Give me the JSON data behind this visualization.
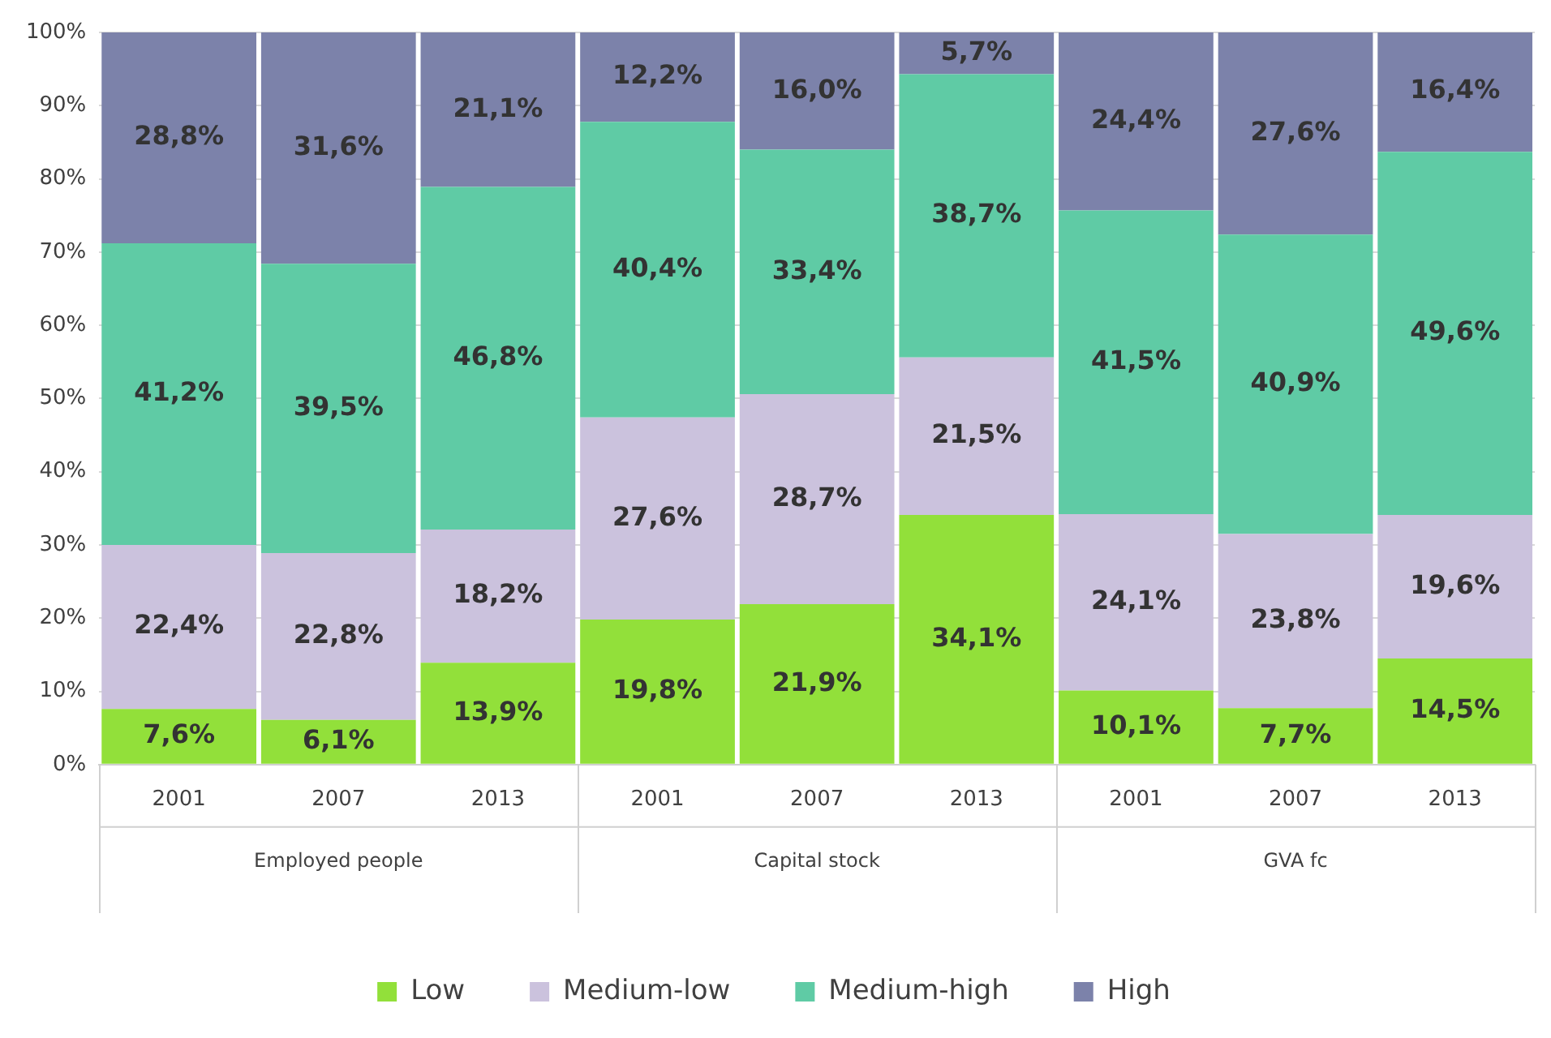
{
  "chart_data": {
    "type": "bar",
    "stacked": true,
    "categories": [
      "2001",
      "2007",
      "2013",
      "2001",
      "2007",
      "2013",
      "2001",
      "2007",
      "2013"
    ],
    "annotations": [
      "Employed people",
      "Capital stock",
      "GVA fc"
    ],
    "series": [
      {
        "name": "Low",
        "color": "#92e03a",
        "values": [
          7.6,
          6.1,
          13.9,
          19.8,
          21.9,
          34.1,
          10.1,
          7.7,
          14.5
        ],
        "value_labels": [
          "7,6%",
          "6,1%",
          "13,9%",
          "19,8%",
          "21,9%",
          "34,1%",
          "10,1%",
          "7,7%",
          "14,5%"
        ]
      },
      {
        "name": "Medium-low",
        "color": "#cbc2dd",
        "values": [
          22.4,
          22.8,
          18.2,
          27.6,
          28.7,
          21.5,
          24.1,
          23.8,
          19.6
        ],
        "value_labels": [
          "22,4%",
          "22,8%",
          "18,2%",
          "27,6%",
          "28,7%",
          "21,5%",
          "24,1%",
          "23,8%",
          "19,6%"
        ]
      },
      {
        "name": "Medium-high",
        "color": "#5fcba5",
        "values": [
          41.2,
          39.5,
          46.8,
          40.4,
          33.4,
          38.7,
          41.5,
          40.9,
          49.6
        ],
        "value_labels": [
          "41,2%",
          "39,5%",
          "46,8%",
          "40,4%",
          "33,4%",
          "38,7%",
          "41,5%",
          "40,9%",
          "49,6%"
        ]
      },
      {
        "name": "High",
        "color": "#7c82aa",
        "values": [
          28.8,
          31.6,
          21.1,
          12.2,
          16.0,
          5.7,
          24.4,
          27.6,
          16.4
        ],
        "value_labels": [
          "28,8%",
          "31,6%",
          "21,1%",
          "12,2%",
          "16,0%",
          "5,7%",
          "24,4%",
          "27,6%",
          "16,4%"
        ]
      }
    ],
    "ylim": [
      0,
      100
    ],
    "yticks": [
      {
        "value": 0,
        "label": "0%"
      },
      {
        "value": 10,
        "label": "10%"
      },
      {
        "value": 20,
        "label": "20%"
      },
      {
        "value": 30,
        "label": "30%"
      },
      {
        "value": 40,
        "label": "40%"
      },
      {
        "value": 50,
        "label": "50%"
      },
      {
        "value": 60,
        "label": "60%"
      },
      {
        "value": 70,
        "label": "70%"
      },
      {
        "value": 80,
        "label": "80%"
      },
      {
        "value": 90,
        "label": "90%"
      },
      {
        "value": 100,
        "label": "100%"
      }
    ],
    "grid": "y",
    "legend": "bottom"
  }
}
